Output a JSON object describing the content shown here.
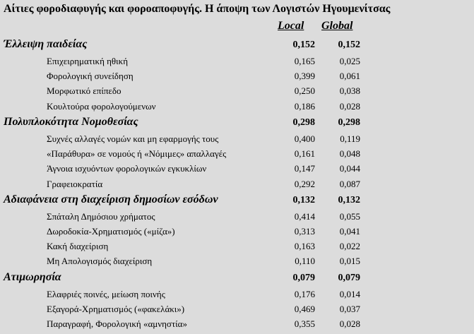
{
  "title": "Αίτιες φοροδιαφυγής και φοροαποφυγής. Η άποψη των Λογιστών Ηγουμενίτσας",
  "headers": {
    "local": "Local",
    "global": "Global"
  },
  "categories": [
    {
      "label": "Έλλειψη παιδείας",
      "local": "0,152",
      "global": "0,152",
      "items": [
        {
          "label": "Επιχειρηματική ηθική",
          "local": "0,165",
          "global": "0,025"
        },
        {
          "label": "Φορολογική συνείδηση",
          "local": "0,399",
          "global": "0,061"
        },
        {
          "label": "Μορφωτικό επίπεδο",
          "local": "0,250",
          "global": "0,038"
        },
        {
          "label": "Κουλτούρα φορολογούμενων",
          "local": "0,186",
          "global": "0,028"
        }
      ]
    },
    {
      "label": "Πολυπλοκότητα Νομοθεσίας",
      "local": "0,298",
      "global": "0,298",
      "items": [
        {
          "label": "Συχνές αλλαγές νομών και μη εφαρμογής τους",
          "local": "0,400",
          "global": "0,119"
        },
        {
          "label": "«Παράθυρα»  σε νομούς ή «Νόμιμες» απαλλαγές",
          "local": "0,161",
          "global": "0,048"
        },
        {
          "label": "Άγνοια ισχυόντων φορολογικών εγκυκλίων",
          "local": "0,147",
          "global": "0,044"
        },
        {
          "label": "Γραφειοκρατία",
          "local": "0,292",
          "global": "0,087"
        }
      ]
    },
    {
      "label": "Αδιαφάνεια στη διαχείριση δημοσίων εσόδων",
      "local": "0,132",
      "global": "0,132",
      "items": [
        {
          "label": "Σπάταλη Δημόσιου χρήματος",
          "local": "0,414",
          "global": "0,055"
        },
        {
          "label": "Δωροδοκία-Χρηματισμός («μίζα»)",
          "local": "0,313",
          "global": "0,041"
        },
        {
          "label": "Κακή διαχείριση",
          "local": "0,163",
          "global": "0,022"
        },
        {
          "label": "Μη Απολογισμός  διαχείριση",
          "local": "0,110",
          "global": "0,015"
        }
      ]
    },
    {
      "label": "Ατιμωρησία",
      "local": "0,079",
      "global": "0,079",
      "items": [
        {
          "label": "Ελαφριές ποινές,  μείωση ποινής",
          "local": "0,176",
          "global": "0,014"
        },
        {
          "label": "Εξαγορά-Χρηματισμός («φακελάκι»)",
          "local": "0,469",
          "global": "0,037"
        },
        {
          "label": "Παραγραφή, Φορολογική «αμνηστία»",
          "local": "0,355",
          "global": "0,028"
        }
      ]
    }
  ]
}
